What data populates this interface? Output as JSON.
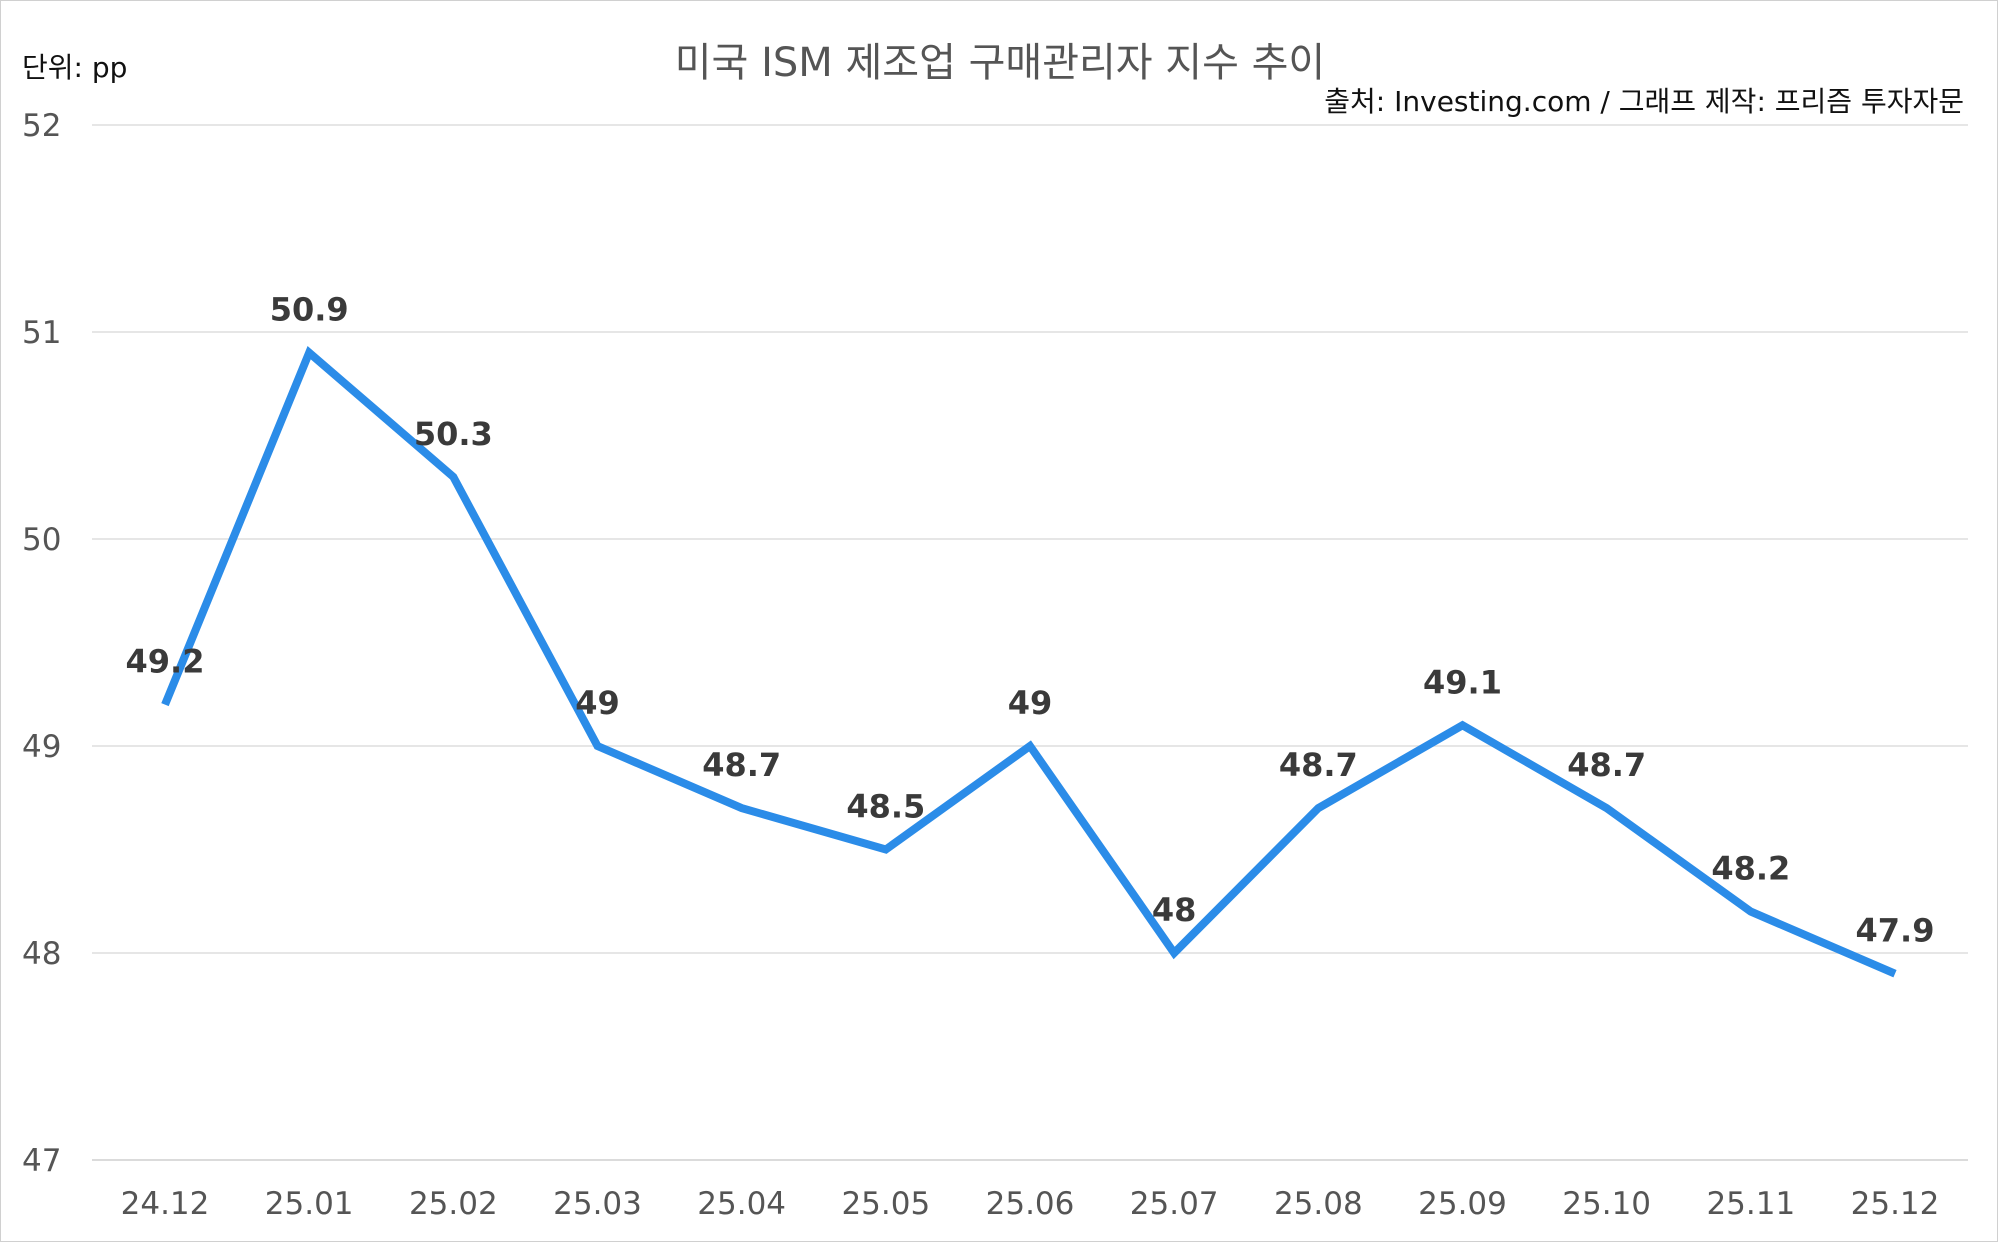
{
  "chart_data": {
    "type": "line",
    "title": "미국 ISM 제조업 구매관리자 지수 추이",
    "unit_label": "단위: pp",
    "source_label": "출처: Investing.com / 그래프 제작: 프리즘 투자자문",
    "categories": [
      "24.12",
      "25.01",
      "25.02",
      "25.03",
      "25.04",
      "25.05",
      "25.06",
      "25.07",
      "25.08",
      "25.09",
      "25.10",
      "25.11",
      "25.12"
    ],
    "series": [
      {
        "values": [
          49.2,
          50.9,
          50.3,
          49,
          48.7,
          48.5,
          49,
          48,
          48.7,
          49.1,
          48.7,
          48.2,
          47.9
        ]
      }
    ],
    "data_labels": [
      "49.2",
      "50.9",
      "50.3",
      "49",
      "48.7",
      "48.5",
      "49",
      "48",
      "48.7",
      "49.1",
      "48.7",
      "48.2",
      "47.9"
    ],
    "y_ticks": [
      "47",
      "48",
      "49",
      "50",
      "51",
      "52"
    ],
    "ylim": [
      47,
      52
    ],
    "grid": true,
    "line_color": "#2b8ce8"
  }
}
